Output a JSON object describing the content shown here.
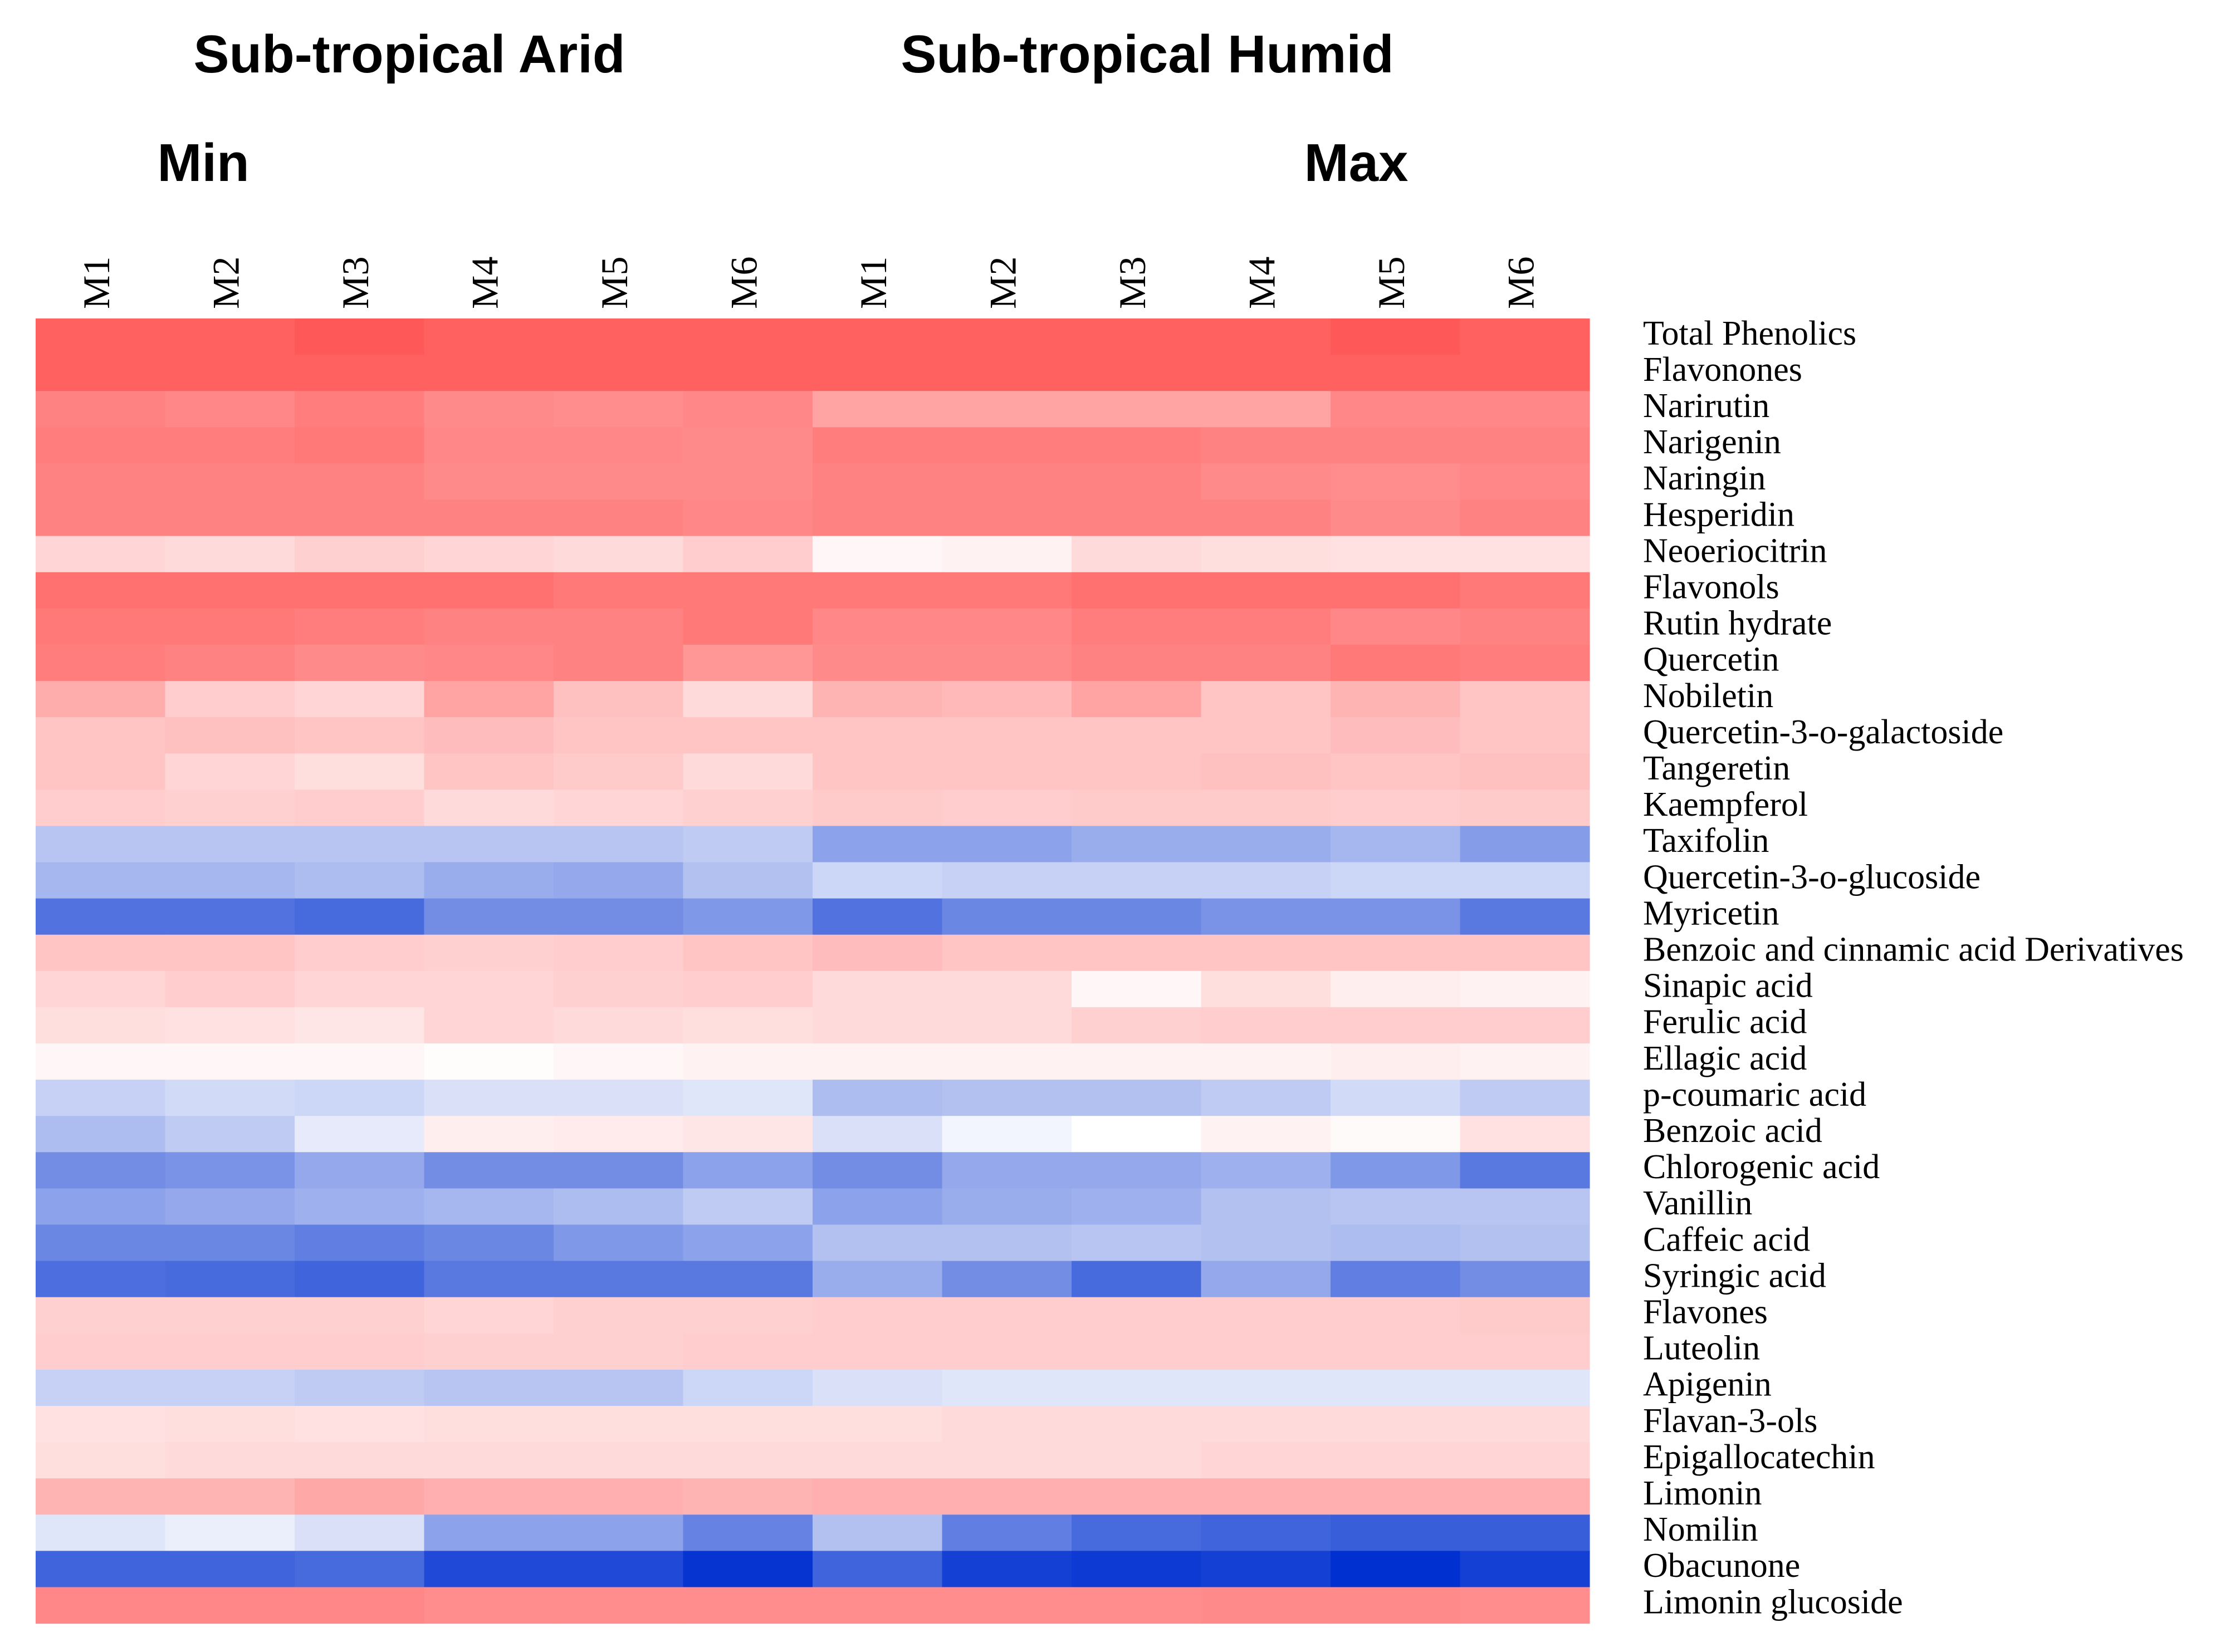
{
  "chart_data": {
    "type": "heatmap",
    "title": "",
    "groups": [
      "Sub-tropical Arid",
      "Sub-tropical Humid"
    ],
    "scale_labels": {
      "min": "Min",
      "max": "Max"
    },
    "columns": [
      "M1",
      "M2",
      "M3",
      "M4",
      "M5",
      "M6",
      "M1",
      "M2",
      "M3",
      "M4",
      "M5",
      "M6"
    ],
    "column_groups": [
      "Sub-tropical Arid",
      "Sub-tropical Arid",
      "Sub-tropical Arid",
      "Sub-tropical Arid",
      "Sub-tropical Arid",
      "Sub-tropical Arid",
      "Sub-tropical Humid",
      "Sub-tropical Humid",
      "Sub-tropical Humid",
      "Sub-tropical Humid",
      "Sub-tropical Humid",
      "Sub-tropical Humid"
    ],
    "rows": [
      "Total Phenolics",
      "Flavonones",
      "Narirutin",
      "Narigenin",
      "Naringin",
      "Hesperidin",
      "Neoeriocitrin",
      "Flavonols",
      "Rutin hydrate",
      "Quercetin",
      "Nobiletin",
      "Quercetin-3-o-galactoside",
      "Tangeretin",
      "Kaempferol",
      "Taxifolin",
      "Quercetin-3-o-glucoside",
      "Myricetin",
      "Benzoic and cinnamic acid Derivatives",
      "Sinapic acid",
      "Ferulic acid",
      "Ellagic acid",
      "p-coumaric acid",
      "Benzoic acid",
      "Chlorogenic acid",
      "Vanillin",
      "Caffeic acid",
      "Syringic acid",
      "Flavones",
      "Luteolin",
      "Apigenin",
      "Flavan-3-ols",
      "Epigallocatechin",
      "Limonin",
      "Nomilin",
      "Obacunone",
      "Limonin glucoside"
    ],
    "value_scale": "relative (-1 = min / blue, 0 = white, 1 = max / red)",
    "colors": {
      "low": "#0030d0",
      "mid": "#ffffff",
      "high": "#ff5858"
    },
    "values": [
      [
        0.95,
        0.95,
        1.0,
        0.95,
        0.95,
        0.95,
        0.95,
        0.95,
        0.95,
        0.95,
        1.0,
        0.95
      ],
      [
        0.95,
        0.95,
        0.95,
        0.95,
        0.95,
        0.95,
        0.95,
        0.95,
        0.95,
        0.95,
        0.95,
        0.95
      ],
      [
        0.75,
        0.72,
        0.78,
        0.7,
        0.68,
        0.72,
        0.55,
        0.55,
        0.55,
        0.55,
        0.72,
        0.72
      ],
      [
        0.78,
        0.78,
        0.8,
        0.72,
        0.72,
        0.7,
        0.78,
        0.78,
        0.78,
        0.75,
        0.75,
        0.75
      ],
      [
        0.75,
        0.75,
        0.75,
        0.7,
        0.7,
        0.7,
        0.75,
        0.75,
        0.75,
        0.7,
        0.68,
        0.72
      ],
      [
        0.75,
        0.75,
        0.75,
        0.75,
        0.75,
        0.72,
        0.75,
        0.75,
        0.75,
        0.75,
        0.7,
        0.75
      ],
      [
        0.25,
        0.22,
        0.28,
        0.25,
        0.22,
        0.3,
        0.05,
        0.08,
        0.22,
        0.2,
        0.18,
        0.18
      ],
      [
        0.85,
        0.85,
        0.85,
        0.85,
        0.8,
        0.8,
        0.8,
        0.8,
        0.85,
        0.85,
        0.85,
        0.8
      ],
      [
        0.8,
        0.8,
        0.78,
        0.75,
        0.75,
        0.8,
        0.72,
        0.72,
        0.78,
        0.78,
        0.72,
        0.75
      ],
      [
        0.78,
        0.75,
        0.7,
        0.72,
        0.75,
        0.62,
        0.7,
        0.7,
        0.75,
        0.75,
        0.8,
        0.78
      ],
      [
        0.5,
        0.3,
        0.25,
        0.55,
        0.38,
        0.22,
        0.45,
        0.42,
        0.55,
        0.35,
        0.45,
        0.35
      ],
      [
        0.35,
        0.38,
        0.35,
        0.4,
        0.35,
        0.35,
        0.35,
        0.35,
        0.35,
        0.35,
        0.4,
        0.35
      ],
      [
        0.35,
        0.25,
        0.2,
        0.35,
        0.32,
        0.22,
        0.35,
        0.35,
        0.35,
        0.38,
        0.35,
        0.38
      ],
      [
        0.3,
        0.28,
        0.3,
        0.22,
        0.25,
        0.28,
        0.32,
        0.3,
        0.32,
        0.32,
        0.3,
        0.32
      ],
      [
        -0.28,
        -0.28,
        -0.28,
        -0.28,
        -0.28,
        -0.25,
        -0.45,
        -0.45,
        -0.4,
        -0.4,
        -0.35,
        -0.48
      ],
      [
        -0.35,
        -0.35,
        -0.32,
        -0.4,
        -0.42,
        -0.3,
        -0.2,
        -0.22,
        -0.22,
        -0.22,
        -0.2,
        -0.2
      ],
      [
        -0.68,
        -0.68,
        -0.72,
        -0.55,
        -0.55,
        -0.5,
        -0.68,
        -0.58,
        -0.58,
        -0.52,
        -0.52,
        -0.65
      ],
      [
        0.35,
        0.35,
        0.3,
        0.28,
        0.3,
        0.35,
        0.4,
        0.35,
        0.35,
        0.35,
        0.35,
        0.35
      ],
      [
        0.25,
        0.3,
        0.25,
        0.25,
        0.28,
        0.3,
        0.22,
        0.22,
        0.05,
        0.2,
        0.1,
        0.08
      ],
      [
        0.2,
        0.18,
        0.15,
        0.25,
        0.22,
        0.2,
        0.22,
        0.22,
        0.28,
        0.3,
        0.3,
        0.3
      ],
      [
        0.05,
        0.05,
        0.05,
        0.02,
        0.05,
        0.08,
        0.08,
        0.08,
        0.08,
        0.08,
        0.1,
        0.08
      ],
      [
        -0.22,
        -0.18,
        -0.2,
        -0.15,
        -0.15,
        -0.12,
        -0.32,
        -0.3,
        -0.3,
        -0.25,
        -0.18,
        -0.25
      ],
      [
        -0.32,
        -0.25,
        -0.1,
        0.1,
        0.12,
        0.15,
        -0.15,
        -0.05,
        0.0,
        0.08,
        0.03,
        0.18
      ],
      [
        -0.55,
        -0.52,
        -0.42,
        -0.55,
        -0.55,
        -0.45,
        -0.55,
        -0.42,
        -0.42,
        -0.38,
        -0.5,
        -0.65
      ],
      [
        -0.45,
        -0.42,
        -0.38,
        -0.35,
        -0.32,
        -0.25,
        -0.45,
        -0.4,
        -0.38,
        -0.3,
        -0.28,
        -0.28
      ],
      [
        -0.58,
        -0.58,
        -0.62,
        -0.58,
        -0.5,
        -0.45,
        -0.3,
        -0.3,
        -0.28,
        -0.3,
        -0.32,
        -0.3
      ],
      [
        -0.7,
        -0.72,
        -0.75,
        -0.65,
        -0.65,
        -0.65,
        -0.4,
        -0.55,
        -0.72,
        -0.42,
        -0.62,
        -0.55
      ],
      [
        0.28,
        0.28,
        0.28,
        0.25,
        0.28,
        0.28,
        0.3,
        0.3,
        0.3,
        0.3,
        0.3,
        0.32
      ],
      [
        0.3,
        0.3,
        0.3,
        0.28,
        0.28,
        0.3,
        0.3,
        0.3,
        0.3,
        0.3,
        0.3,
        0.3
      ],
      [
        -0.22,
        -0.22,
        -0.25,
        -0.28,
        -0.28,
        -0.2,
        -0.15,
        -0.12,
        -0.12,
        -0.12,
        -0.12,
        -0.12
      ],
      [
        0.18,
        0.2,
        0.18,
        0.2,
        0.2,
        0.2,
        0.2,
        0.22,
        0.22,
        0.22,
        0.22,
        0.22
      ],
      [
        0.2,
        0.22,
        0.22,
        0.22,
        0.22,
        0.22,
        0.22,
        0.22,
        0.22,
        0.25,
        0.25,
        0.25
      ],
      [
        0.45,
        0.45,
        0.52,
        0.48,
        0.48,
        0.45,
        0.48,
        0.48,
        0.48,
        0.48,
        0.48,
        0.48
      ],
      [
        -0.12,
        -0.08,
        -0.15,
        -0.45,
        -0.45,
        -0.6,
        -0.3,
        -0.62,
        -0.72,
        -0.75,
        -0.78,
        -0.78
      ],
      [
        -0.75,
        -0.75,
        -0.72,
        -0.88,
        -0.88,
        -0.98,
        -0.75,
        -0.92,
        -0.95,
        -0.92,
        -1.0,
        -0.92
      ],
      [
        0.72,
        0.72,
        0.72,
        0.68,
        0.68,
        0.68,
        0.68,
        0.68,
        0.68,
        0.7,
        0.7,
        0.68
      ]
    ]
  }
}
